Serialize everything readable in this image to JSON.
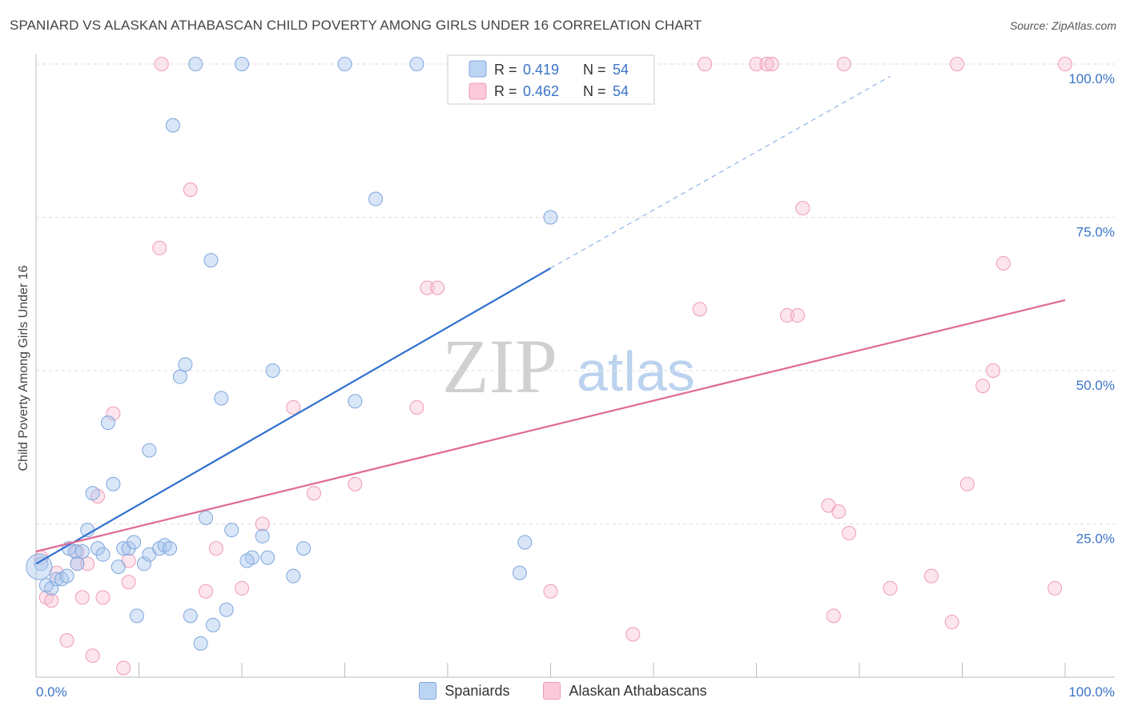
{
  "title": "SPANIARD VS ALASKAN ATHABASCAN CHILD POVERTY AMONG GIRLS UNDER 16 CORRELATION CHART",
  "source": "Source: ZipAtlas.com",
  "watermark": {
    "zip": "ZIP",
    "atlas": "atlas"
  },
  "legend": {
    "r_label": "R =",
    "n_label": "N =",
    "rows": [
      {
        "r": "0.419",
        "n": "54"
      },
      {
        "r": "0.462",
        "n": "54"
      }
    ]
  },
  "bottom_legend": [
    "Spaniards",
    "Alaskan Athabascans"
  ],
  "chart_data": {
    "type": "scatter",
    "title": "SPANIARD VS ALASKAN ATHABASCAN CHILD POVERTY AMONG GIRLS UNDER 16 CORRELATION CHART",
    "xlabel": "",
    "ylabel": "Child Poverty Among Girls Under 16",
    "xlim": [
      0,
      100
    ],
    "ylim": [
      0,
      100
    ],
    "x_tick_labels": [
      "0.0%",
      "100.0%"
    ],
    "y_tick_labels": [
      "25.0%",
      "50.0%",
      "75.0%",
      "100.0%"
    ],
    "y_ticks": [
      25,
      50,
      75,
      100
    ],
    "colors": {
      "Spaniards": "#6fa0e0",
      "Alaskan Athabascans": "#f08fb0",
      "Spaniards_line": "#2f6fce",
      "Alaskan Athabascans_line": "#e06a95"
    },
    "series": [
      {
        "name": "Spaniards",
        "r": 0.419,
        "n": 54,
        "trend": {
          "x0": 0,
          "y0": 18.5,
          "x1": 50,
          "y1": 66.7,
          "dashed_to_x": 83,
          "dashed_to_y": 98
        },
        "points": [
          [
            0.5,
            18.5
          ],
          [
            1,
            15
          ],
          [
            1.5,
            14.5
          ],
          [
            2,
            16
          ],
          [
            2.5,
            16
          ],
          [
            3,
            16.5
          ],
          [
            3.2,
            21
          ],
          [
            3.8,
            20.5
          ],
          [
            4,
            18.5
          ],
          [
            4.5,
            20.5
          ],
          [
            5,
            24
          ],
          [
            5.5,
            30
          ],
          [
            6,
            21
          ],
          [
            6.5,
            20
          ],
          [
            7,
            41.5
          ],
          [
            7.5,
            31.5
          ],
          [
            8,
            18
          ],
          [
            8.5,
            21
          ],
          [
            9,
            21
          ],
          [
            9.5,
            22
          ],
          [
            9.8,
            10
          ],
          [
            10.5,
            18.5
          ],
          [
            11,
            20
          ],
          [
            11,
            37
          ],
          [
            12,
            21
          ],
          [
            12.5,
            21.5
          ],
          [
            13,
            21
          ],
          [
            13.3,
            90
          ],
          [
            14,
            49
          ],
          [
            14.5,
            51
          ],
          [
            15,
            10
          ],
          [
            15.5,
            100
          ],
          [
            16,
            5.5
          ],
          [
            16.5,
            26
          ],
          [
            17,
            68
          ],
          [
            17.2,
            8.5
          ],
          [
            18,
            45.5
          ],
          [
            18.5,
            11
          ],
          [
            19,
            24
          ],
          [
            20,
            100
          ],
          [
            21,
            19.5
          ],
          [
            22,
            23
          ],
          [
            22.5,
            19.5
          ],
          [
            23,
            50
          ],
          [
            25,
            16.5
          ],
          [
            26,
            21
          ],
          [
            30,
            100
          ],
          [
            31,
            45
          ],
          [
            33,
            78
          ],
          [
            37,
            100
          ],
          [
            47,
            17
          ],
          [
            47.5,
            22
          ],
          [
            50,
            75
          ],
          [
            20.5,
            19
          ]
        ]
      },
      {
        "name": "Alaskan Athabascans",
        "r": 0.462,
        "n": 54,
        "trend": {
          "x0": 0,
          "y0": 20.5,
          "x1": 100,
          "y1": 61.5
        },
        "points": [
          [
            0.5,
            19.5
          ],
          [
            1,
            13
          ],
          [
            1.5,
            12.5
          ],
          [
            2,
            17
          ],
          [
            3,
            6
          ],
          [
            4,
            20.5
          ],
          [
            4,
            18.5
          ],
          [
            5,
            18.5
          ],
          [
            4.5,
            13
          ],
          [
            5.5,
            3.5
          ],
          [
            6,
            29.5
          ],
          [
            6.5,
            13
          ],
          [
            7.5,
            43
          ],
          [
            8.5,
            1.5
          ],
          [
            9,
            19
          ],
          [
            9,
            15.5
          ],
          [
            12,
            70
          ],
          [
            15,
            79.5
          ],
          [
            16.5,
            14
          ],
          [
            17.5,
            21
          ],
          [
            20,
            14.5
          ],
          [
            22,
            25
          ],
          [
            25,
            44
          ],
          [
            27,
            30
          ],
          [
            31,
            31.5
          ],
          [
            37,
            44
          ],
          [
            38,
            63.5
          ],
          [
            39,
            63.5
          ],
          [
            50,
            14
          ],
          [
            58,
            7
          ],
          [
            64.5,
            60
          ],
          [
            65,
            100
          ],
          [
            70,
            100
          ],
          [
            71,
            100
          ],
          [
            71.5,
            100
          ],
          [
            73,
            59
          ],
          [
            74,
            59
          ],
          [
            74.5,
            76.5
          ],
          [
            77,
            28
          ],
          [
            77.5,
            10
          ],
          [
            78,
            27
          ],
          [
            79,
            23.5
          ],
          [
            78.5,
            100
          ],
          [
            83,
            14.5
          ],
          [
            87,
            16.5
          ],
          [
            89,
            9
          ],
          [
            89.5,
            100
          ],
          [
            90.5,
            31.5
          ],
          [
            92,
            47.5
          ],
          [
            93,
            50
          ],
          [
            94,
            67.5
          ],
          [
            99,
            14.5
          ],
          [
            100,
            100
          ],
          [
            12.2,
            100
          ]
        ]
      }
    ]
  }
}
